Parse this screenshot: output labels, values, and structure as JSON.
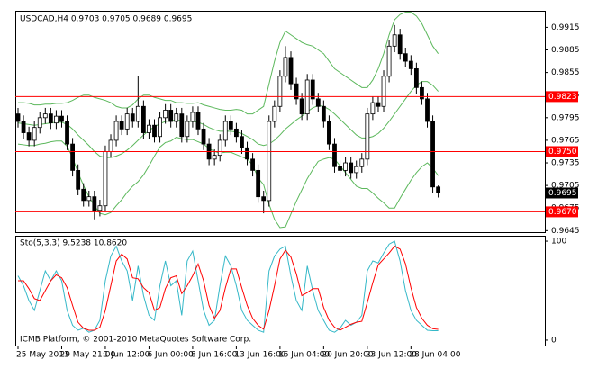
{
  "chart_data": [
    {
      "type": "candlestick",
      "title": "USDCAD,H4 0.9703 0.9705 0.9689 0.9695",
      "color": "#000000",
      "categories": [
        "25 May 2011",
        null,
        null,
        null,
        null,
        null,
        null,
        null,
        "29 May 21:00",
        null,
        null,
        null,
        null,
        null,
        null,
        null,
        "1 Jun 12:00",
        null,
        null,
        null,
        null,
        null,
        null,
        null,
        "6 Jun 00:00",
        null,
        null,
        null,
        null,
        null,
        null,
        null,
        "8 Jun 16:00",
        null,
        null,
        null,
        null,
        null,
        null,
        null,
        "13 Jun 16:00",
        null,
        null,
        null,
        null,
        null,
        null,
        null,
        "16 Jun 04:00",
        null,
        null,
        null,
        null,
        null,
        null,
        null,
        "20 Jun 20:00",
        null,
        null,
        null,
        null,
        null,
        null,
        null,
        "23 Jun 12:00",
        null,
        null,
        null,
        null,
        null,
        null,
        null,
        "28 Jun 04:00",
        null,
        null,
        null,
        null,
        null
      ],
      "open": [
        0.98,
        0.979,
        0.9775,
        0.9765,
        0.9782,
        0.9795,
        0.98,
        0.9788,
        0.9797,
        0.979,
        0.976,
        0.9725,
        0.97,
        0.9685,
        0.969,
        0.9672,
        0.9678,
        0.975,
        0.9765,
        0.979,
        0.978,
        0.98,
        0.979,
        0.981,
        0.9775,
        0.9785,
        0.977,
        0.9795,
        0.9805,
        0.979,
        0.98,
        0.977,
        0.979,
        0.9802,
        0.978,
        0.976,
        0.974,
        0.9745,
        0.9765,
        0.979,
        0.978,
        0.977,
        0.9755,
        0.974,
        0.9725,
        0.969,
        0.9685,
        0.979,
        0.981,
        0.985,
        0.9875,
        0.984,
        0.982,
        0.98,
        0.9845,
        0.982,
        0.981,
        0.979,
        0.976,
        0.973,
        0.9725,
        0.9735,
        0.9722,
        0.973,
        0.974,
        0.98,
        0.9815,
        0.981,
        0.985,
        0.989,
        0.9905,
        0.988,
        0.987,
        0.986,
        0.9835,
        0.982,
        0.979,
        0.9703
      ],
      "high": [
        0.9808,
        0.9798,
        0.9783,
        0.979,
        0.9803,
        0.9808,
        0.9808,
        0.9805,
        0.9805,
        0.9798,
        0.9768,
        0.9733,
        0.9708,
        0.9698,
        0.9698,
        0.9686,
        0.9758,
        0.9773,
        0.9798,
        0.9798,
        0.9808,
        0.9808,
        0.985,
        0.9818,
        0.9793,
        0.9793,
        0.9803,
        0.9813,
        0.9813,
        0.9808,
        0.9808,
        0.9798,
        0.981,
        0.981,
        0.9788,
        0.9768,
        0.9753,
        0.9773,
        0.9798,
        0.9798,
        0.9788,
        0.9778,
        0.9763,
        0.9748,
        0.9733,
        0.9698,
        0.9798,
        0.9818,
        0.9858,
        0.989,
        0.9883,
        0.9848,
        0.9828,
        0.9853,
        0.9853,
        0.9828,
        0.9818,
        0.9798,
        0.9768,
        0.9738,
        0.9743,
        0.9743,
        0.9738,
        0.9748,
        0.9808,
        0.9823,
        0.9823,
        0.9858,
        0.9898,
        0.9918,
        0.9913,
        0.9888,
        0.9878,
        0.9868,
        0.9843,
        0.9828,
        0.9798,
        0.9705
      ],
      "low": [
        0.9782,
        0.9767,
        0.9757,
        0.9757,
        0.9774,
        0.9787,
        0.978,
        0.978,
        0.9782,
        0.9752,
        0.9717,
        0.9692,
        0.9677,
        0.9677,
        0.966,
        0.9664,
        0.967,
        0.9742,
        0.9757,
        0.9772,
        0.9772,
        0.9782,
        0.9782,
        0.9767,
        0.9767,
        0.9762,
        0.9762,
        0.9787,
        0.9782,
        0.9782,
        0.9762,
        0.9762,
        0.9782,
        0.9772,
        0.9752,
        0.9732,
        0.9732,
        0.9737,
        0.9757,
        0.9772,
        0.9762,
        0.9747,
        0.9732,
        0.9717,
        0.9682,
        0.9668,
        0.9677,
        0.9782,
        0.9802,
        0.9842,
        0.9832,
        0.9812,
        0.9792,
        0.9792,
        0.9812,
        0.9802,
        0.9782,
        0.9752,
        0.9722,
        0.9717,
        0.9717,
        0.9714,
        0.9714,
        0.9722,
        0.9732,
        0.9792,
        0.9802,
        0.9802,
        0.9842,
        0.9882,
        0.9872,
        0.9862,
        0.9852,
        0.9827,
        0.9812,
        0.9782,
        0.9695,
        0.9689
      ],
      "close": [
        0.979,
        0.9775,
        0.9765,
        0.9782,
        0.9795,
        0.98,
        0.9788,
        0.9797,
        0.979,
        0.976,
        0.9725,
        0.97,
        0.9685,
        0.969,
        0.9672,
        0.9678,
        0.975,
        0.9765,
        0.979,
        0.978,
        0.98,
        0.979,
        0.981,
        0.9775,
        0.9785,
        0.977,
        0.9795,
        0.9805,
        0.979,
        0.98,
        0.977,
        0.979,
        0.9802,
        0.978,
        0.976,
        0.974,
        0.9745,
        0.9765,
        0.979,
        0.978,
        0.977,
        0.9755,
        0.974,
        0.9725,
        0.969,
        0.9685,
        0.979,
        0.981,
        0.985,
        0.9875,
        0.984,
        0.982,
        0.98,
        0.9845,
        0.982,
        0.981,
        0.979,
        0.976,
        0.973,
        0.9725,
        0.9735,
        0.9722,
        0.973,
        0.974,
        0.98,
        0.9815,
        0.981,
        0.985,
        0.989,
        0.9905,
        0.988,
        0.987,
        0.986,
        0.9835,
        0.982,
        0.979,
        0.9703,
        0.9695
      ],
      "bands": {
        "color": "#5cb85c",
        "upper": [
          0.9815,
          0.9815,
          0.9814,
          0.9812,
          0.9812,
          0.9813,
          0.9813,
          0.9814,
          0.9814,
          0.9815,
          0.9818,
          0.9822,
          0.9825,
          0.9825,
          0.9822,
          0.982,
          0.9818,
          0.9815,
          0.981,
          0.9808,
          0.9808,
          0.9812,
          0.982,
          0.9825,
          0.9825,
          0.9822,
          0.982,
          0.9818,
          0.9818,
          0.9815,
          0.9815,
          0.9814,
          0.9814,
          0.9815,
          0.9812,
          0.981,
          0.9808,
          0.9806,
          0.9805,
          0.9805,
          0.9806,
          0.9805,
          0.98,
          0.98,
          0.9805,
          0.981,
          0.984,
          0.987,
          0.9895,
          0.991,
          0.9905,
          0.99,
          0.9895,
          0.9892,
          0.989,
          0.9885,
          0.988,
          0.987,
          0.986,
          0.9855,
          0.985,
          0.9845,
          0.984,
          0.9835,
          0.9835,
          0.9845,
          0.986,
          0.988,
          0.9905,
          0.9925,
          0.9932,
          0.9935,
          0.9935,
          0.993,
          0.992,
          0.9905,
          0.989,
          0.988
        ],
        "middle": [
          0.9788,
          0.9787,
          0.9786,
          0.9785,
          0.9786,
          0.9787,
          0.9788,
          0.9789,
          0.9789,
          0.9786,
          0.978,
          0.9772,
          0.9765,
          0.9758,
          0.975,
          0.9744,
          0.9742,
          0.9742,
          0.9744,
          0.9747,
          0.9752,
          0.9758,
          0.9765,
          0.9772,
          0.9778,
          0.9783,
          0.9787,
          0.979,
          0.9791,
          0.9792,
          0.9791,
          0.979,
          0.979,
          0.9789,
          0.9786,
          0.9782,
          0.9779,
          0.9777,
          0.9777,
          0.9777,
          0.9776,
          0.9774,
          0.977,
          0.9766,
          0.976,
          0.9758,
          0.976,
          0.9765,
          0.9772,
          0.978,
          0.9786,
          0.9792,
          0.9797,
          0.9803,
          0.9808,
          0.9811,
          0.981,
          0.9806,
          0.98,
          0.9793,
          0.9786,
          0.9779,
          0.9772,
          0.9768,
          0.9768,
          0.977,
          0.9774,
          0.9781,
          0.979,
          0.98,
          0.981,
          0.982,
          0.983,
          0.9838,
          0.9843,
          0.9843,
          0.9838,
          0.983
        ],
        "lower": [
          0.976,
          0.9759,
          0.9758,
          0.9758,
          0.976,
          0.9761,
          0.9763,
          0.9764,
          0.9764,
          0.9757,
          0.9742,
          0.9722,
          0.9705,
          0.969,
          0.9678,
          0.9668,
          0.9666,
          0.9669,
          0.9678,
          0.9686,
          0.9696,
          0.9704,
          0.971,
          0.9719,
          0.9731,
          0.9744,
          0.9756,
          0.9762,
          0.9764,
          0.9769,
          0.9767,
          0.9766,
          0.9766,
          0.9763,
          0.976,
          0.9754,
          0.975,
          0.9748,
          0.9749,
          0.9749,
          0.9746,
          0.9743,
          0.974,
          0.9732,
          0.9715,
          0.9706,
          0.968,
          0.966,
          0.9649,
          0.965,
          0.9667,
          0.9684,
          0.9699,
          0.9714,
          0.9726,
          0.9737,
          0.974,
          0.9742,
          0.974,
          0.9731,
          0.9722,
          0.9713,
          0.9704,
          0.9701,
          0.9701,
          0.9695,
          0.9688,
          0.9682,
          0.9675,
          0.9675,
          0.9688,
          0.97,
          0.9712,
          0.9722,
          0.973,
          0.9735,
          0.9728,
          0.9718
        ]
      },
      "levels": [
        0.9823,
        {
          "value": 0.975,
          "label": "0.9750"
        },
        {
          "value": 0.967,
          "label": "0.9670"
        }
      ],
      "level_color": "#ff0000",
      "ylim": [
        0.9643,
        0.9937
      ],
      "yticks": [
        0.9645,
        0.9675,
        0.9705,
        0.9735,
        0.9765,
        0.9795,
        0.9825,
        0.9855,
        0.9885,
        0.9915
      ],
      "grid": false
    },
    {
      "type": "line",
      "title": "Sto(5,3,3) 9.5238 10.8620",
      "annotation": "ICMB Platform, © 2001-2010 MetaQuotes Software Corp.",
      "series": [
        {
          "color": "#35b8c8",
          "values": [
            65,
            55,
            40,
            30,
            50,
            70,
            60,
            70,
            60,
            30,
            15,
            10,
            12,
            8,
            10,
            20,
            60,
            85,
            95,
            80,
            70,
            40,
            75,
            45,
            25,
            20,
            55,
            80,
            55,
            60,
            25,
            80,
            90,
            60,
            30,
            15,
            20,
            55,
            85,
            75,
            55,
            30,
            20,
            15,
            10,
            8,
            70,
            85,
            92,
            95,
            65,
            40,
            30,
            75,
            50,
            30,
            20,
            10,
            8,
            12,
            20,
            15,
            18,
            25,
            70,
            80,
            78,
            88,
            97,
            100,
            80,
            50,
            30,
            20,
            15,
            10,
            9.5,
            9.5238
          ]
        },
        {
          "color": "#ff0000",
          "values": [
            60,
            60,
            52,
            42,
            40,
            50,
            60,
            66,
            63,
            53,
            35,
            18,
            12,
            10,
            10,
            13,
            30,
            55,
            80,
            87,
            82,
            63,
            62,
            53,
            48,
            30,
            33,
            52,
            63,
            65,
            47,
            55,
            65,
            77,
            60,
            35,
            22,
            30,
            53,
            72,
            72,
            53,
            35,
            22,
            15,
            11,
            30,
            55,
            82,
            91,
            84,
            67,
            45,
            48,
            52,
            52,
            33,
            20,
            13,
            10,
            13,
            16,
            18,
            19,
            38,
            58,
            76,
            82,
            88,
            95,
            92,
            77,
            53,
            33,
            22,
            15,
            11.5,
            10.862
          ]
        }
      ],
      "ylim": [
        -5.5,
        105.5
      ],
      "yticks": [
        0,
        100
      ],
      "grid": false
    }
  ]
}
